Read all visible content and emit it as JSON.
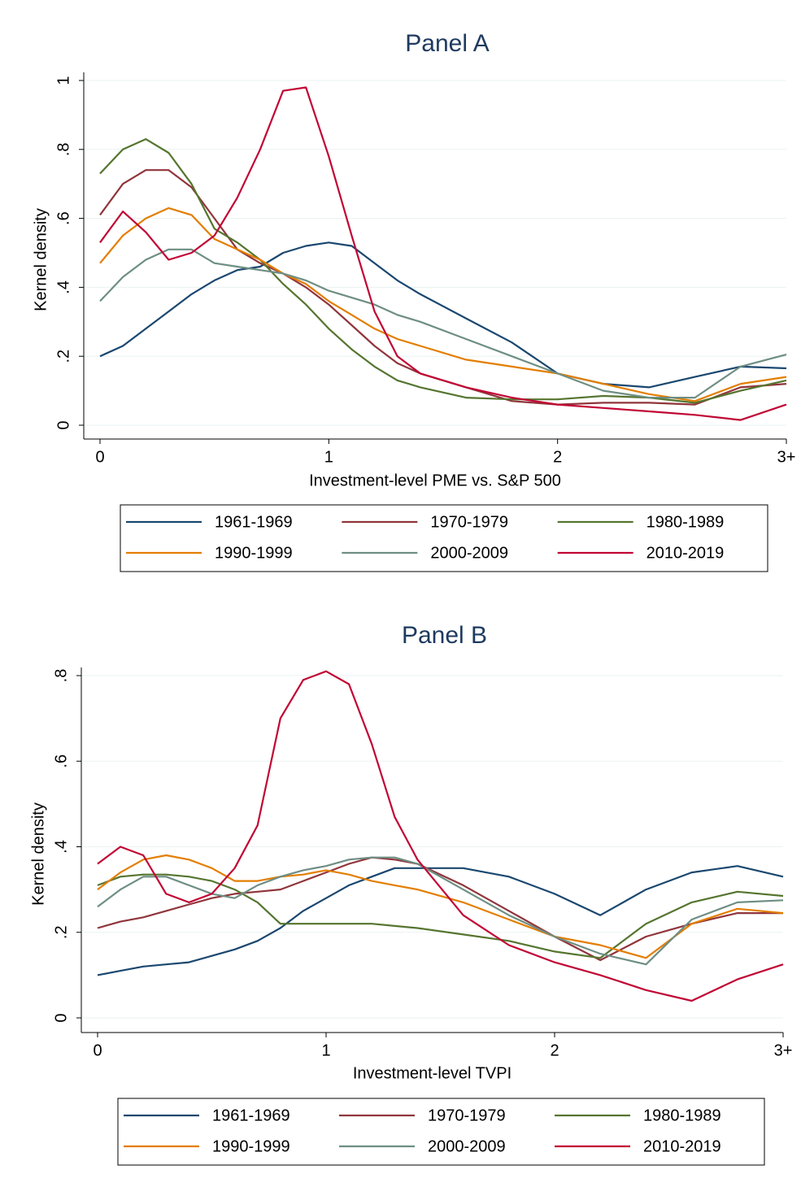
{
  "chart_data": [
    {
      "type": "line",
      "title": "Panel A",
      "xlabel": "Investment-level PME vs. S&P 500",
      "ylabel": "Kernel density",
      "x": [
        0,
        0.1,
        0.2,
        0.3,
        0.4,
        0.5,
        0.6,
        0.7,
        0.8,
        0.9,
        1.0,
        1.1,
        1.2,
        1.3,
        1.4,
        1.6,
        1.8,
        2.0,
        2.2,
        2.4,
        2.6,
        2.8,
        3.0
      ],
      "xlim": [
        0,
        3
      ],
      "xticks": [
        0,
        1,
        2,
        {
          "value": 3,
          "label": "3+"
        }
      ],
      "ylim": [
        0,
        1
      ],
      "yticks": [
        0,
        {
          "value": 0.2,
          "label": ".2"
        },
        {
          "value": 0.4,
          "label": ".4"
        },
        {
          "value": 0.6,
          "label": ".6"
        },
        {
          "value": 0.8,
          "label": ".8"
        },
        1
      ],
      "grid": true,
      "series": [
        {
          "name": "1961-1969",
          "color": "#1a476f",
          "values": [
            0.2,
            0.23,
            0.28,
            0.33,
            0.38,
            0.42,
            0.45,
            0.46,
            0.5,
            0.52,
            0.53,
            0.52,
            0.47,
            0.42,
            0.38,
            0.31,
            0.24,
            0.15,
            0.12,
            0.11,
            0.14,
            0.17,
            0.165
          ]
        },
        {
          "name": "1970-1979",
          "color": "#90353b",
          "values": [
            0.61,
            0.7,
            0.74,
            0.74,
            0.69,
            0.6,
            0.51,
            0.47,
            0.44,
            0.4,
            0.35,
            0.29,
            0.23,
            0.18,
            0.15,
            0.11,
            0.07,
            0.06,
            0.065,
            0.065,
            0.06,
            0.11,
            0.12
          ]
        },
        {
          "name": "1980-1989",
          "color": "#55752f",
          "values": [
            0.73,
            0.8,
            0.83,
            0.79,
            0.7,
            0.57,
            0.53,
            0.48,
            0.41,
            0.35,
            0.28,
            0.22,
            0.17,
            0.13,
            0.11,
            0.08,
            0.075,
            0.075,
            0.085,
            0.08,
            0.065,
            0.1,
            0.13
          ]
        },
        {
          "name": "1990-1999",
          "color": "#e37e00",
          "values": [
            0.47,
            0.55,
            0.6,
            0.63,
            0.61,
            0.54,
            0.51,
            0.48,
            0.44,
            0.41,
            0.36,
            0.32,
            0.28,
            0.25,
            0.23,
            0.19,
            0.17,
            0.15,
            0.12,
            0.09,
            0.07,
            0.12,
            0.14
          ]
        },
        {
          "name": "2000-2009",
          "color": "#6e8e84",
          "values": [
            0.36,
            0.43,
            0.48,
            0.51,
            0.51,
            0.47,
            0.46,
            0.45,
            0.44,
            0.42,
            0.39,
            0.37,
            0.35,
            0.32,
            0.3,
            0.25,
            0.2,
            0.15,
            0.1,
            0.08,
            0.08,
            0.17,
            0.205
          ]
        },
        {
          "name": "2010-2019",
          "color": "#c10534",
          "values": [
            0.53,
            0.62,
            0.56,
            0.48,
            0.5,
            0.55,
            0.66,
            0.8,
            0.97,
            0.98,
            0.78,
            0.55,
            0.33,
            0.2,
            0.15,
            0.11,
            0.08,
            0.06,
            0.05,
            0.04,
            0.03,
            0.015,
            0.06
          ]
        }
      ]
    },
    {
      "type": "line",
      "title": "Panel B",
      "xlabel": "Investment-level TVPI",
      "ylabel": "Kernel density",
      "x": [
        0,
        0.1,
        0.2,
        0.3,
        0.4,
        0.5,
        0.6,
        0.7,
        0.8,
        0.9,
        1.0,
        1.1,
        1.2,
        1.3,
        1.4,
        1.6,
        1.8,
        2.0,
        2.2,
        2.4,
        2.6,
        2.8,
        3.0
      ],
      "xlim": [
        0,
        3
      ],
      "xticks": [
        0,
        1,
        2,
        {
          "value": 3,
          "label": "3+"
        }
      ],
      "ylim": [
        0,
        0.8
      ],
      "yticks": [
        0,
        {
          "value": 0.2,
          "label": ".2"
        },
        {
          "value": 0.4,
          "label": ".4"
        },
        {
          "value": 0.6,
          "label": ".6"
        },
        {
          "value": 0.8,
          "label": ".8"
        }
      ],
      "grid": true,
      "series": [
        {
          "name": "1961-1969",
          "color": "#1a476f",
          "values": [
            0.1,
            0.11,
            0.12,
            0.125,
            0.13,
            0.145,
            0.16,
            0.18,
            0.21,
            0.25,
            0.28,
            0.31,
            0.33,
            0.35,
            0.35,
            0.35,
            0.33,
            0.29,
            0.24,
            0.3,
            0.34,
            0.355,
            0.33
          ]
        },
        {
          "name": "1970-1979",
          "color": "#90353b",
          "values": [
            0.21,
            0.225,
            0.235,
            0.25,
            0.265,
            0.28,
            0.29,
            0.295,
            0.3,
            0.32,
            0.34,
            0.36,
            0.375,
            0.37,
            0.36,
            0.31,
            0.25,
            0.19,
            0.135,
            0.19,
            0.22,
            0.245,
            0.245
          ]
        },
        {
          "name": "1980-1989",
          "color": "#55752f",
          "values": [
            0.31,
            0.33,
            0.335,
            0.335,
            0.33,
            0.32,
            0.3,
            0.27,
            0.22,
            0.22,
            0.22,
            0.22,
            0.22,
            0.215,
            0.21,
            0.195,
            0.18,
            0.155,
            0.14,
            0.22,
            0.27,
            0.295,
            0.285
          ]
        },
        {
          "name": "1990-1999",
          "color": "#e37e00",
          "values": [
            0.3,
            0.34,
            0.37,
            0.38,
            0.37,
            0.35,
            0.32,
            0.32,
            0.33,
            0.335,
            0.345,
            0.335,
            0.32,
            0.31,
            0.3,
            0.27,
            0.23,
            0.19,
            0.17,
            0.14,
            0.22,
            0.255,
            0.245
          ]
        },
        {
          "name": "2000-2009",
          "color": "#6e8e84",
          "values": [
            0.26,
            0.3,
            0.33,
            0.33,
            0.31,
            0.29,
            0.28,
            0.31,
            0.33,
            0.345,
            0.355,
            0.37,
            0.375,
            0.375,
            0.36,
            0.3,
            0.24,
            0.19,
            0.15,
            0.125,
            0.23,
            0.27,
            0.275
          ]
        },
        {
          "name": "2010-2019",
          "color": "#c10534",
          "values": [
            0.36,
            0.4,
            0.38,
            0.29,
            0.27,
            0.29,
            0.35,
            0.45,
            0.7,
            0.79,
            0.81,
            0.78,
            0.64,
            0.47,
            0.37,
            0.24,
            0.17,
            0.13,
            0.1,
            0.065,
            0.04,
            0.09,
            0.125
          ]
        }
      ]
    }
  ]
}
